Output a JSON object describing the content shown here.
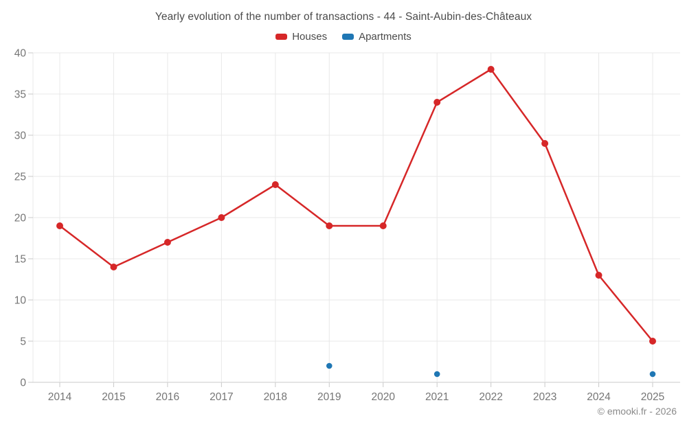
{
  "window": {
    "background_color": "#ffffff"
  },
  "chart": {
    "title": "Yearly evolution of the number of transactions - 44 - Saint-Aubin-des-Châteaux",
    "copyright": "© emooki.fr - 2026"
  },
  "legend": {
    "items": [
      {
        "label": "Houses",
        "color": "#d62728"
      },
      {
        "label": "Apartments",
        "color": "#1f77b4"
      }
    ]
  },
  "chart_data": {
    "type": "line",
    "title": "Yearly evolution of the number of transactions - 44 - Saint-Aubin-des-Châteaux",
    "categories": [
      "2014",
      "2015",
      "2016",
      "2017",
      "2018",
      "2019",
      "2020",
      "2021",
      "2022",
      "2023",
      "2024",
      "2025"
    ],
    "series": [
      {
        "name": "Houses",
        "color": "#d62728",
        "values": [
          19,
          14,
          17,
          20,
          24,
          19,
          19,
          34,
          38,
          29,
          13,
          5
        ]
      },
      {
        "name": "Apartments",
        "color": "#1f77b4",
        "values": [
          null,
          null,
          null,
          null,
          null,
          2,
          null,
          1,
          null,
          null,
          null,
          1
        ]
      }
    ],
    "xlabel": "",
    "ylabel": "",
    "ylim": [
      0,
      40
    ],
    "yticks": [
      0,
      5,
      10,
      15,
      20,
      25,
      30,
      35,
      40
    ],
    "grid": true,
    "legend_position": "top",
    "grid_color": "#e8e8e8",
    "axis_color": "#c9c9c9",
    "tick_label_color": "#757575",
    "copyright": "© emooki.fr - 2026"
  }
}
